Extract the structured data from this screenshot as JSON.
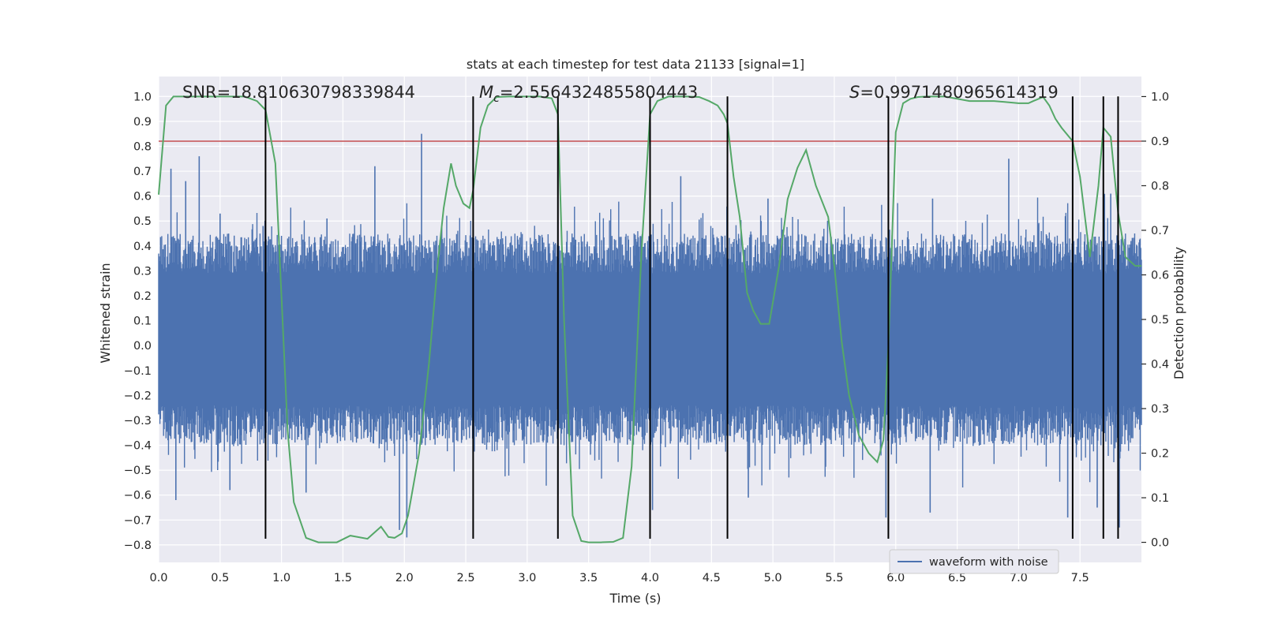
{
  "chart_data": {
    "type": "line",
    "title": "stats at each timestep for test data 21133 [signal=1]",
    "xlabel": "Time (s)",
    "ylabel_left": "Whitened strain",
    "ylabel_right": "Detection probability",
    "xlim": [
      0.0,
      8.0
    ],
    "ylim_left": [
      -0.87,
      1.08
    ],
    "ylim_right": [
      -0.045,
      1.045
    ],
    "grid": true,
    "x_ticks": [
      "0.0",
      "0.5",
      "1.0",
      "1.5",
      "2.0",
      "2.5",
      "3.0",
      "3.5",
      "4.0",
      "4.5",
      "5.0",
      "5.5",
      "6.0",
      "6.5",
      "7.0",
      "7.5"
    ],
    "x_tick_values": [
      0,
      0.5,
      1,
      1.5,
      2,
      2.5,
      3,
      3.5,
      4,
      4.5,
      5,
      5.5,
      6,
      6.5,
      7,
      7.5
    ],
    "y_left_ticks": [
      "1.0",
      "0.9",
      "0.8",
      "0.7",
      "0.6",
      "0.5",
      "0.4",
      "0.3",
      "0.2",
      "0.1",
      "0.0",
      "−0.1",
      "−0.2",
      "−0.3",
      "−0.4",
      "−0.5",
      "−0.6",
      "−0.7",
      "−0.8"
    ],
    "y_left_tick_values": [
      1.0,
      0.9,
      0.8,
      0.7,
      0.6,
      0.5,
      0.4,
      0.3,
      0.2,
      0.1,
      0.0,
      -0.1,
      -0.2,
      -0.3,
      -0.4,
      -0.5,
      -0.6,
      -0.7,
      -0.8
    ],
    "y_right_ticks": [
      "1.0",
      "0.9",
      "0.8",
      "0.7",
      "0.6",
      "0.5",
      "0.4",
      "0.3",
      "0.2",
      "0.1",
      "0.0"
    ],
    "y_right_tick_values": [
      1.0,
      0.9,
      0.8,
      0.7,
      0.6,
      0.5,
      0.4,
      0.3,
      0.2,
      0.1,
      0.0
    ],
    "stats": {
      "snr": "SNR=18.810630798339844",
      "mc_symbol": "M",
      "mc_subscript": "c",
      "mc_value": "=2.5564324855804443",
      "s_symbol": "S",
      "s_value": "=0.9971480965614319"
    },
    "threshold": {
      "value": 0.9,
      "axis": "right",
      "color": "#c44e52"
    },
    "vertical_markers": [
      0.87,
      2.56,
      3.25,
      4.0,
      4.63,
      5.94,
      7.44,
      7.69,
      7.81
    ],
    "marker_ymax_left": 1.0,
    "marker_ymin_left": -0.775,
    "series": [
      {
        "name": "waveform with noise",
        "axis": "left",
        "color": "#4c72b0",
        "kind": "noise",
        "band_low": -0.24,
        "band_high": 0.29,
        "spikes": [
          {
            "x": 0.1,
            "y": 0.71
          },
          {
            "x": 0.22,
            "y": 0.66
          },
          {
            "x": 0.33,
            "y": 0.76
          },
          {
            "x": 0.5,
            "y": 0.53
          },
          {
            "x": 0.85,
            "y": 0.48
          },
          {
            "x": 1.37,
            "y": 0.51
          },
          {
            "x": 1.76,
            "y": 0.72
          },
          {
            "x": 2.14,
            "y": 0.85
          },
          {
            "x": 3.25,
            "y": 0.93
          },
          {
            "x": 4.25,
            "y": 0.68
          },
          {
            "x": 4.63,
            "y": 0.73
          },
          {
            "x": 4.96,
            "y": 0.59
          },
          {
            "x": 6.3,
            "y": 0.59
          },
          {
            "x": 6.92,
            "y": 0.75
          },
          {
            "x": 7.75,
            "y": 0.61
          },
          {
            "x": 0.14,
            "y": -0.62
          },
          {
            "x": 0.58,
            "y": -0.58
          },
          {
            "x": 0.87,
            "y": -0.67
          },
          {
            "x": 1.2,
            "y": -0.59
          },
          {
            "x": 1.96,
            "y": -0.74
          },
          {
            "x": 2.02,
            "y": -0.77
          },
          {
            "x": 3.25,
            "y": -0.6
          },
          {
            "x": 4.02,
            "y": -0.66
          },
          {
            "x": 4.8,
            "y": -0.61
          },
          {
            "x": 5.92,
            "y": -0.69
          },
          {
            "x": 6.28,
            "y": -0.67
          },
          {
            "x": 7.4,
            "y": -0.69
          },
          {
            "x": 7.64,
            "y": -0.65
          },
          {
            "x": 7.82,
            "y": -0.73
          }
        ]
      },
      {
        "name": "detection probability",
        "axis": "right",
        "color": "#55a868",
        "x": [
          0.0,
          0.06,
          0.12,
          0.2,
          0.3,
          0.4,
          0.5,
          0.6,
          0.7,
          0.8,
          0.87,
          0.95,
          1.0,
          1.05,
          1.1,
          1.2,
          1.3,
          1.45,
          1.56,
          1.7,
          1.81,
          1.87,
          1.92,
          1.98,
          2.03,
          2.12,
          2.2,
          2.27,
          2.32,
          2.38,
          2.42,
          2.48,
          2.53,
          2.56,
          2.62,
          2.68,
          2.75,
          2.85,
          3.0,
          3.1,
          3.2,
          3.25,
          3.3,
          3.37,
          3.44,
          3.5,
          3.6,
          3.7,
          3.78,
          3.85,
          3.93,
          4.0,
          4.06,
          4.15,
          4.3,
          4.4,
          4.48,
          4.55,
          4.6,
          4.63,
          4.68,
          4.73,
          4.79,
          4.84,
          4.9,
          4.97,
          5.05,
          5.12,
          5.2,
          5.27,
          5.35,
          5.45,
          5.5,
          5.56,
          5.62,
          5.7,
          5.78,
          5.85,
          5.9,
          5.94,
          6.0,
          6.06,
          6.12,
          6.18,
          6.25,
          6.4,
          6.6,
          6.8,
          7.0,
          7.08,
          7.12,
          7.2,
          7.25,
          7.3,
          7.35,
          7.44,
          7.5,
          7.58,
          7.65,
          7.69,
          7.75,
          7.81,
          7.87,
          7.95,
          8.0
        ],
        "y": [
          0.78,
          0.98,
          1.0,
          1.0,
          1.0,
          1.0,
          1.0,
          1.0,
          1.0,
          0.99,
          0.97,
          0.85,
          0.55,
          0.25,
          0.09,
          0.01,
          0.0,
          0.0,
          0.015,
          0.008,
          0.035,
          0.012,
          0.01,
          0.02,
          0.06,
          0.2,
          0.4,
          0.62,
          0.75,
          0.85,
          0.8,
          0.76,
          0.75,
          0.79,
          0.93,
          0.98,
          0.999,
          1.0,
          1.0,
          1.0,
          0.996,
          0.96,
          0.5,
          0.06,
          0.003,
          0.0,
          0.0,
          0.001,
          0.01,
          0.17,
          0.65,
          0.96,
          0.99,
          1.0,
          1.0,
          0.999,
          0.99,
          0.98,
          0.96,
          0.94,
          0.82,
          0.73,
          0.56,
          0.52,
          0.49,
          0.49,
          0.62,
          0.77,
          0.84,
          0.88,
          0.8,
          0.73,
          0.62,
          0.45,
          0.33,
          0.24,
          0.2,
          0.18,
          0.23,
          0.44,
          0.92,
          0.985,
          0.995,
          0.999,
          1.0,
          1.0,
          0.99,
          0.99,
          0.985,
          0.985,
          0.99,
          0.999,
          0.98,
          0.95,
          0.93,
          0.9,
          0.82,
          0.64,
          0.8,
          0.93,
          0.91,
          0.74,
          0.64,
          0.62,
          0.62
        ]
      }
    ],
    "legend": {
      "label": "waveform with noise",
      "placement": "lower-right"
    }
  },
  "colors": {
    "plot_background": "#eaeaf2",
    "grid": "#ffffff",
    "marker_lines": "#000000"
  }
}
